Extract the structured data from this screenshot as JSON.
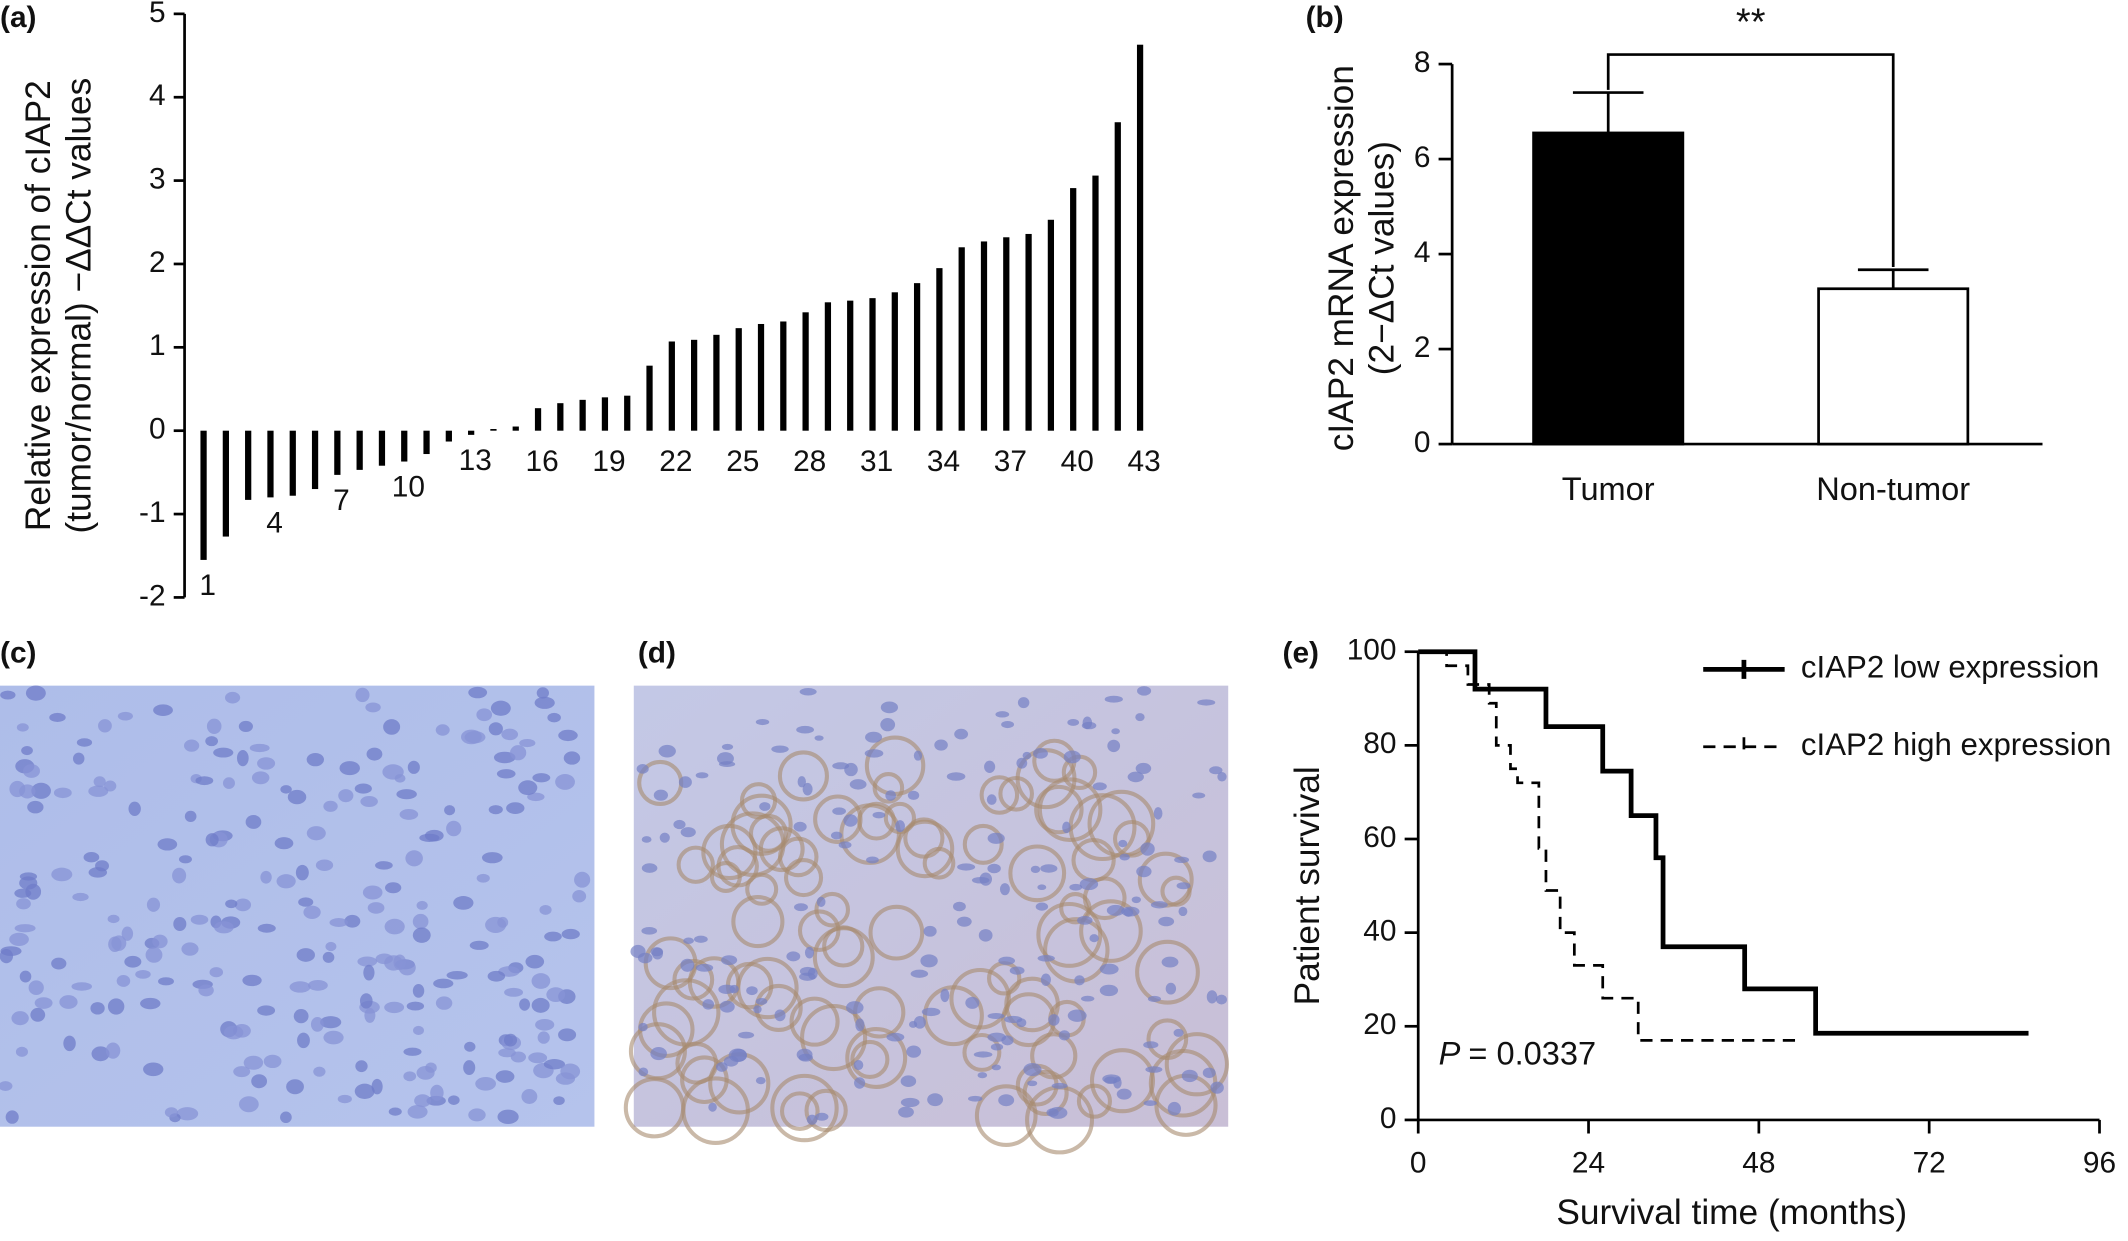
{
  "chart_data": [
    {
      "type": "bar",
      "label": "(a)",
      "ylabel": [
        "Relative expression of cIAP2",
        "(tumor/normal) −ΔΔCt values"
      ],
      "categories": [
        "1",
        null,
        null,
        "4",
        null,
        null,
        "7",
        null,
        null,
        "10",
        null,
        null,
        "13",
        null,
        null,
        "16",
        null,
        null,
        "19",
        null,
        null,
        "22",
        null,
        null,
        "25",
        null,
        null,
        "28",
        null,
        null,
        "31",
        null,
        null,
        "34",
        null,
        null,
        "37",
        null,
        null,
        "40",
        null,
        null,
        "43"
      ],
      "values": [
        -1.55,
        -1.27,
        -0.83,
        -0.8,
        -0.78,
        -0.7,
        -0.53,
        -0.47,
        -0.42,
        -0.37,
        -0.28,
        -0.13,
        -0.05,
        0.02,
        0.05,
        0.27,
        0.33,
        0.37,
        0.4,
        0.42,
        0.78,
        1.07,
        1.09,
        1.15,
        1.23,
        1.28,
        1.31,
        1.42,
        1.54,
        1.56,
        1.59,
        1.66,
        1.77,
        1.95,
        2.2,
        2.27,
        2.32,
        2.36,
        2.53,
        2.91,
        3.06,
        3.7,
        4.63
      ],
      "color": "#000000",
      "ylim": [
        -2,
        5
      ],
      "yticks": [
        -2,
        -1,
        0,
        1,
        2,
        3,
        4,
        5
      ]
    },
    {
      "type": "bar",
      "label": "(b)",
      "ylabel": [
        "cIAP2 mRNA expression",
        "(2−ΔCt values)"
      ],
      "categories": [
        "Tumor",
        "Non-tumor"
      ],
      "values": [
        6.55,
        3.27
      ],
      "errors": [
        0.85,
        0.4
      ],
      "colors": [
        "#000000",
        "#ffffff"
      ],
      "annotation": "**",
      "ylim": [
        0,
        8
      ],
      "yticks": [
        0,
        2,
        4,
        6,
        8
      ]
    },
    {
      "type": "line",
      "label": "(e)",
      "step": true,
      "xlabel": "Survival time (months)",
      "ylabel": [
        "Patient survival"
      ],
      "series": [
        {
          "name": "cIAP2 low expression",
          "color": "#000000",
          "dash": false,
          "x": [
            0,
            8,
            18,
            26,
            30,
            33.5,
            34.5,
            46,
            56,
            86
          ],
          "values": [
            100,
            92,
            84,
            74.5,
            65,
            56,
            37,
            28,
            18.5,
            18.5
          ]
        },
        {
          "name": "cIAP2 high expression",
          "color": "#000000",
          "dash": true,
          "x": [
            0,
            4,
            7,
            10,
            11,
            13,
            14,
            17,
            18,
            20,
            22,
            26,
            31,
            54
          ],
          "values": [
            100,
            97,
            93,
            89,
            80,
            75,
            72,
            58,
            49,
            40,
            33,
            26,
            17,
            17
          ]
        }
      ],
      "annotation": {
        "symbol": "P",
        "text": "= 0.0337"
      },
      "legend": "upper right",
      "xlim": [
        0,
        96
      ],
      "xticks": [
        0,
        24,
        48,
        72,
        96
      ],
      "ylim": [
        0,
        100
      ],
      "yticks": [
        0,
        20,
        40,
        60,
        80,
        100
      ]
    }
  ],
  "images": [
    {
      "label": "(c)"
    },
    {
      "label": "(d)"
    }
  ]
}
